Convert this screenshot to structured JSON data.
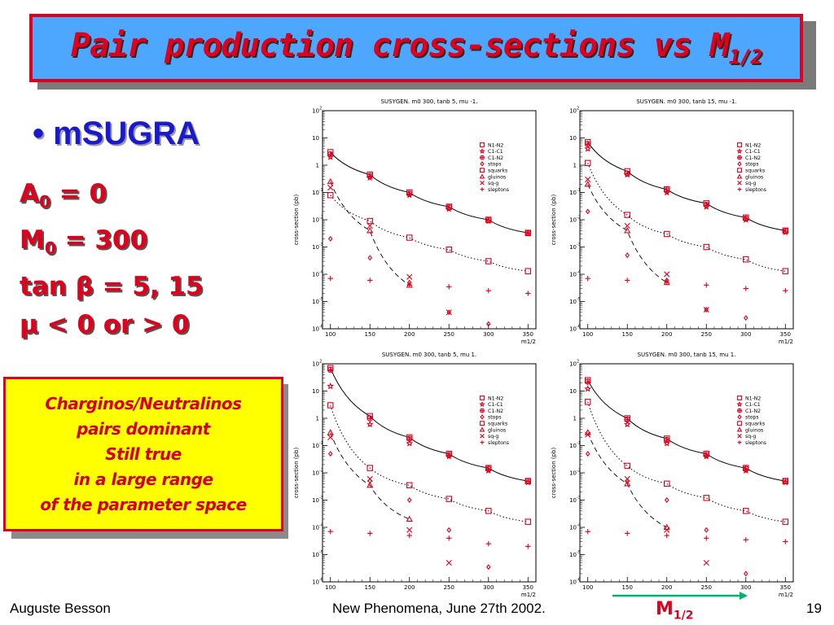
{
  "title": {
    "main": "Pair production cross-sections vs M",
    "sub": "1/2"
  },
  "bullet": "• mSUGRA",
  "params": {
    "a0": {
      "sym": "A",
      "sub": "0",
      "rest": " = 0"
    },
    "m0": {
      "sym": "M",
      "sub": "0",
      "rest": " = 300"
    },
    "tanb": "tan β = 5, 15",
    "mu": "μ < 0 or > 0"
  },
  "note": {
    "lines": [
      "Charginos/Neutralinos",
      "pairs dominant",
      "Still true",
      "in a large range",
      "of the parameter space"
    ]
  },
  "footer": {
    "author": "Auguste Besson",
    "event": "New Phenomena, June 27th 2002.",
    "page": "19",
    "axis_label": "M",
    "axis_label_sub": "1/2",
    "arrow_color": "#00b36b"
  },
  "colors": {
    "red": "#e0001b",
    "blue": "#1a1acc",
    "yellow": "#ffff00",
    "sky": "#4ea7ff"
  },
  "chart_data": [
    {
      "type": "scatter",
      "title": "SUSYGEN. m0 300, tanb 5, mu -1.",
      "xlabel": "m1/2",
      "ylabel": "cross-section (pb)",
      "x": [
        100,
        150,
        200,
        250,
        300,
        350
      ],
      "xticks": [
        "100",
        "150",
        "200",
        "250",
        "300",
        "350"
      ],
      "ylim": [
        1e-06,
        100
      ],
      "yscale": "log",
      "legend_position": "top-right",
      "series": [
        {
          "name": "N1-N2",
          "marker": "square",
          "values": [
            3,
            0.45,
            0.1,
            0.03,
            0.01,
            0.0033
          ]
        },
        {
          "name": "C1-C1",
          "marker": "star",
          "values": [
            2,
            0.35,
            0.08,
            0.025,
            0.009,
            0.0031
          ]
        },
        {
          "name": "C1-N2",
          "marker": "circle-cross",
          "values": [
            2.5,
            0.4,
            0.09,
            0.028,
            0.0095,
            0.0032
          ]
        },
        {
          "name": "stops",
          "marker": "diamond",
          "values": [
            0.002,
            0.0004,
            5e-05,
            4e-06,
            1.5e-06,
            null
          ]
        },
        {
          "name": "squarks",
          "marker": "square-open",
          "values": [
            0.08,
            0.009,
            0.0022,
            0.0008,
            0.0003,
            0.00013
          ]
        },
        {
          "name": "gluinos",
          "marker": "triangle",
          "values": [
            0.25,
            0.004,
            4e-05,
            null,
            null,
            null
          ]
        },
        {
          "name": "sq-g",
          "marker": "x",
          "values": [
            0.15,
            0.006,
            8e-05,
            4e-06,
            null,
            null
          ]
        },
        {
          "name": "sleptons",
          "marker": "plus",
          "values": [
            7e-05,
            6e-05,
            4e-05,
            3.5e-05,
            2.5e-05,
            2e-05
          ]
        }
      ]
    },
    {
      "type": "scatter",
      "title": "SUSYGEN. m0 300, tanb 15, mu -1.",
      "xlabel": "m1/2",
      "ylabel": "cross-section (pb)",
      "x": [
        100,
        150,
        200,
        250,
        300,
        350
      ],
      "xticks": [
        "100",
        "150",
        "200",
        "250",
        "300",
        "350"
      ],
      "ylim": [
        1e-06,
        100
      ],
      "yscale": "log",
      "legend_position": "top-right",
      "series": [
        {
          "name": "N1-N2",
          "marker": "square",
          "values": [
            7,
            0.6,
            0.13,
            0.04,
            0.012,
            0.004
          ]
        },
        {
          "name": "C1-C1",
          "marker": "star",
          "values": [
            4,
            0.45,
            0.1,
            0.03,
            0.01,
            0.0035
          ]
        },
        {
          "name": "C1-N2",
          "marker": "circle-cross",
          "values": [
            6,
            0.5,
            0.12,
            0.035,
            0.011,
            0.0038
          ]
        },
        {
          "name": "stops",
          "marker": "diamond",
          "values": [
            0.02,
            0.0005,
            6e-05,
            5e-06,
            2.5e-06,
            null
          ]
        },
        {
          "name": "squarks",
          "marker": "square-open",
          "values": [
            1.2,
            0.015,
            0.003,
            0.001,
            0.00035,
            0.00013
          ]
        },
        {
          "name": "gluinos",
          "marker": "triangle",
          "values": [
            0.2,
            0.004,
            5e-05,
            null,
            null,
            null
          ]
        },
        {
          "name": "sq-g",
          "marker": "x",
          "values": [
            0.3,
            0.006,
            0.0001,
            5e-06,
            null,
            null
          ]
        },
        {
          "name": "sleptons",
          "marker": "plus",
          "values": [
            7e-05,
            6e-05,
            5e-05,
            4e-05,
            3e-05,
            2.5e-05
          ]
        }
      ]
    },
    {
      "type": "scatter",
      "title": "SUSYGEN. m0 300, tanb 5, mu 1.",
      "xlabel": "m1/2",
      "ylabel": "cross-section (pb)",
      "x": [
        100,
        150,
        200,
        250,
        300,
        350
      ],
      "xticks": [
        "100",
        "150",
        "200",
        "250",
        "300",
        "350"
      ],
      "ylim": [
        1e-06,
        100
      ],
      "yscale": "log",
      "legend_position": "top-right",
      "series": [
        {
          "name": "N1-N2",
          "marker": "square",
          "values": [
            70,
            1.2,
            0.2,
            0.05,
            0.015,
            0.005
          ]
        },
        {
          "name": "C1-C1",
          "marker": "star",
          "values": [
            15,
            0.6,
            0.12,
            0.04,
            0.012,
            0.0045
          ]
        },
        {
          "name": "C1-N2",
          "marker": "circle-cross",
          "values": [
            60,
            1,
            0.18,
            0.045,
            0.014,
            0.005
          ]
        },
        {
          "name": "stops",
          "marker": "diamond",
          "values": [
            0.05,
            0.005,
            0.001,
            8e-05,
            3.5e-06,
            null
          ]
        },
        {
          "name": "squarks",
          "marker": "square-open",
          "values": [
            3,
            0.015,
            0.0035,
            0.0011,
            0.0004,
            0.00016
          ]
        },
        {
          "name": "gluinos",
          "marker": "triangle",
          "values": [
            0.3,
            0.0035,
            0.0002,
            null,
            null,
            null
          ]
        },
        {
          "name": "sq-g",
          "marker": "x",
          "values": [
            0.2,
            0.006,
            8e-05,
            5e-06,
            null,
            null
          ]
        },
        {
          "name": "sleptons",
          "marker": "plus",
          "values": [
            7e-05,
            6e-05,
            5e-05,
            4e-05,
            2.5e-05,
            2e-05
          ]
        }
      ]
    },
    {
      "type": "scatter",
      "title": "SUSYGEN. m0 300, tanb 15, mu 1.",
      "xlabel": "m1/2",
      "ylabel": "cross-section (pb)",
      "x": [
        100,
        150,
        200,
        250,
        300,
        350
      ],
      "xticks": [
        "100",
        "150",
        "200",
        "250",
        "300",
        "350"
      ],
      "ylim": [
        1e-06,
        100
      ],
      "yscale": "log",
      "legend_position": "top-right",
      "series": [
        {
          "name": "N1-N2",
          "marker": "square",
          "values": [
            25,
            1,
            0.18,
            0.05,
            0.015,
            0.005
          ]
        },
        {
          "name": "C1-C1",
          "marker": "star",
          "values": [
            12,
            0.6,
            0.12,
            0.04,
            0.012,
            0.0045
          ]
        },
        {
          "name": "C1-N2",
          "marker": "circle-cross",
          "values": [
            22,
            0.9,
            0.16,
            0.045,
            0.014,
            0.005
          ]
        },
        {
          "name": "stops",
          "marker": "diamond",
          "values": [
            0.05,
            0.005,
            0.001,
            8e-05,
            2e-06,
            null
          ]
        },
        {
          "name": "squarks",
          "marker": "square-open",
          "values": [
            4,
            0.018,
            0.004,
            0.0012,
            0.0004,
            0.00016
          ]
        },
        {
          "name": "gluinos",
          "marker": "triangle",
          "values": [
            0.3,
            0.004,
            0.0001,
            null,
            null,
            null
          ]
        },
        {
          "name": "sq-g",
          "marker": "x",
          "values": [
            0.25,
            0.006,
            8e-05,
            5e-06,
            null,
            null
          ]
        },
        {
          "name": "sleptons",
          "marker": "plus",
          "values": [
            7e-05,
            6e-05,
            5e-05,
            4e-05,
            3.5e-05,
            3e-05
          ]
        }
      ]
    }
  ]
}
